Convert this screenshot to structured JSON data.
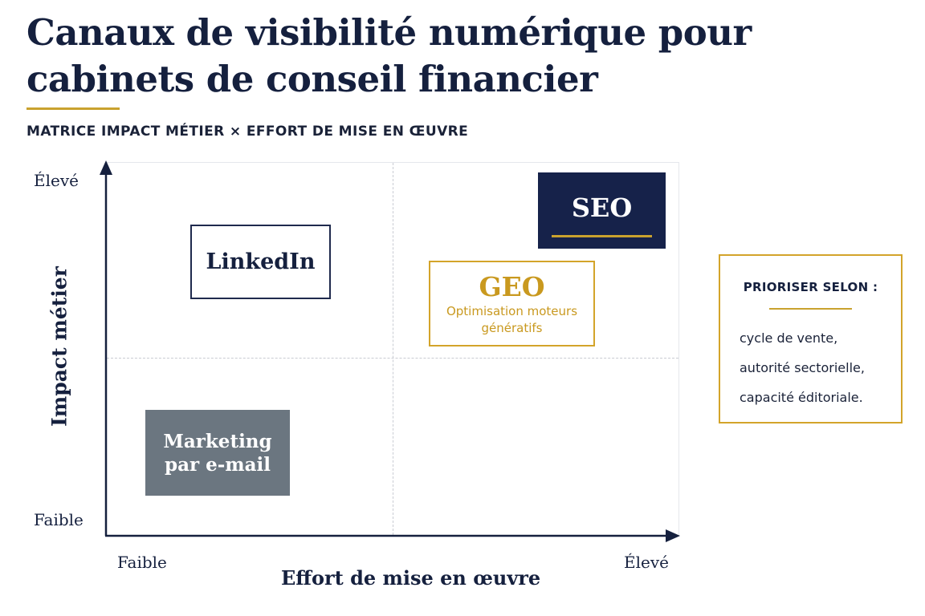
{
  "header": {
    "title": "Canaux de visibilité numérique pour cabinets de conseil financier",
    "subtitle": "MATRICE IMPACT MÉTIER × EFFORT DE MISE EN ŒUVRE"
  },
  "axes": {
    "y_label": "Impact métier",
    "x_label": "Effort de mise en œuvre",
    "y_high": "Élevé",
    "y_low": "Faible",
    "x_low": "Faible",
    "x_high": "Élevé"
  },
  "channels": {
    "seo": {
      "name": "SEO"
    },
    "linkedin": {
      "name": "LinkedIn"
    },
    "geo": {
      "name": "GEO",
      "description_line1": "Optimisation moteurs",
      "description_line2": "génératifs"
    },
    "email": {
      "name_line1": "Marketing",
      "name_line2": "par e-mail"
    }
  },
  "note": {
    "title": "PRIORISER SELON :",
    "lines": [
      "cycle de vente,",
      "autorité sectorielle,",
      "capacité éditoriale."
    ]
  },
  "colors": {
    "navy": "#16224a",
    "gold": "#c9a22e",
    "slate": "#6b7680"
  }
}
